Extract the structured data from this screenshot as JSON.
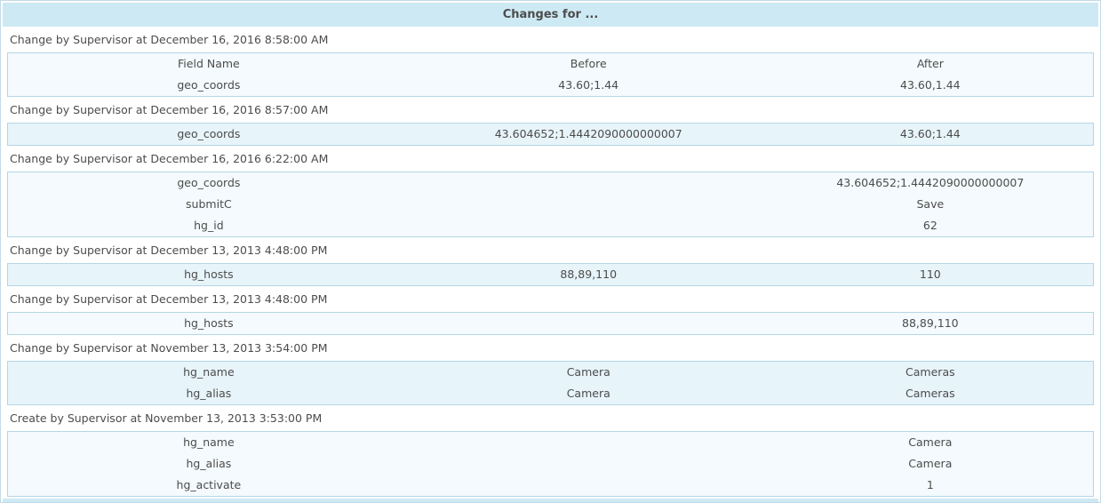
{
  "panel": {
    "title": "Changes for ...",
    "columns": [
      "Field Name",
      "Before",
      "After"
    ]
  },
  "colors": {
    "header_bg": "#cde9f4",
    "table_border": "#b5d6e4",
    "row_shade_light": "#f4fafd",
    "row_shade_blue": "#e7f4fa",
    "text": "#4c4c4c",
    "outer_border": "#c3dae6"
  },
  "sections": [
    {
      "title": "Change by Supervisor at December 16, 2016 8:58:00 AM",
      "show_columns": true,
      "shade": "light",
      "rows": [
        {
          "field": "geo_coords",
          "before": "43.60;1.44",
          "after": "43.60,1.44"
        }
      ]
    },
    {
      "title": "Change by Supervisor at December 16, 2016 8:57:00 AM",
      "show_columns": false,
      "shade": "blue",
      "rows": [
        {
          "field": "geo_coords",
          "before": "43.604652;1.4442090000000007",
          "after": "43.60;1.44"
        }
      ]
    },
    {
      "title": "Change by Supervisor at December 16, 2016 6:22:00 AM",
      "show_columns": false,
      "shade": "light",
      "rows": [
        {
          "field": "geo_coords",
          "before": "",
          "after": "43.604652;1.4442090000000007"
        },
        {
          "field": "submitC",
          "before": "",
          "after": "Save"
        },
        {
          "field": "hg_id",
          "before": "",
          "after": "62"
        }
      ]
    },
    {
      "title": "Change by Supervisor at December 13, 2013 4:48:00 PM",
      "show_columns": false,
      "shade": "blue",
      "rows": [
        {
          "field": "hg_hosts",
          "before": "88,89,110",
          "after": "110"
        }
      ]
    },
    {
      "title": "Change by Supervisor at December 13, 2013 4:48:00 PM",
      "show_columns": false,
      "shade": "light",
      "rows": [
        {
          "field": "hg_hosts",
          "before": "",
          "after": "88,89,110"
        }
      ]
    },
    {
      "title": "Change by Supervisor at November 13, 2013 3:54:00 PM",
      "show_columns": false,
      "shade": "blue",
      "rows": [
        {
          "field": "hg_name",
          "before": "Camera",
          "after": "Cameras"
        },
        {
          "field": "hg_alias",
          "before": "Camera",
          "after": "Cameras"
        }
      ]
    },
    {
      "title": "Create by Supervisor at November 13, 2013 3:53:00 PM",
      "show_columns": false,
      "shade": "light",
      "rows": [
        {
          "field": "hg_name",
          "before": "",
          "after": "Camera"
        },
        {
          "field": "hg_alias",
          "before": "",
          "after": "Camera"
        },
        {
          "field": "hg_activate",
          "before": "",
          "after": "1"
        }
      ]
    }
  ]
}
